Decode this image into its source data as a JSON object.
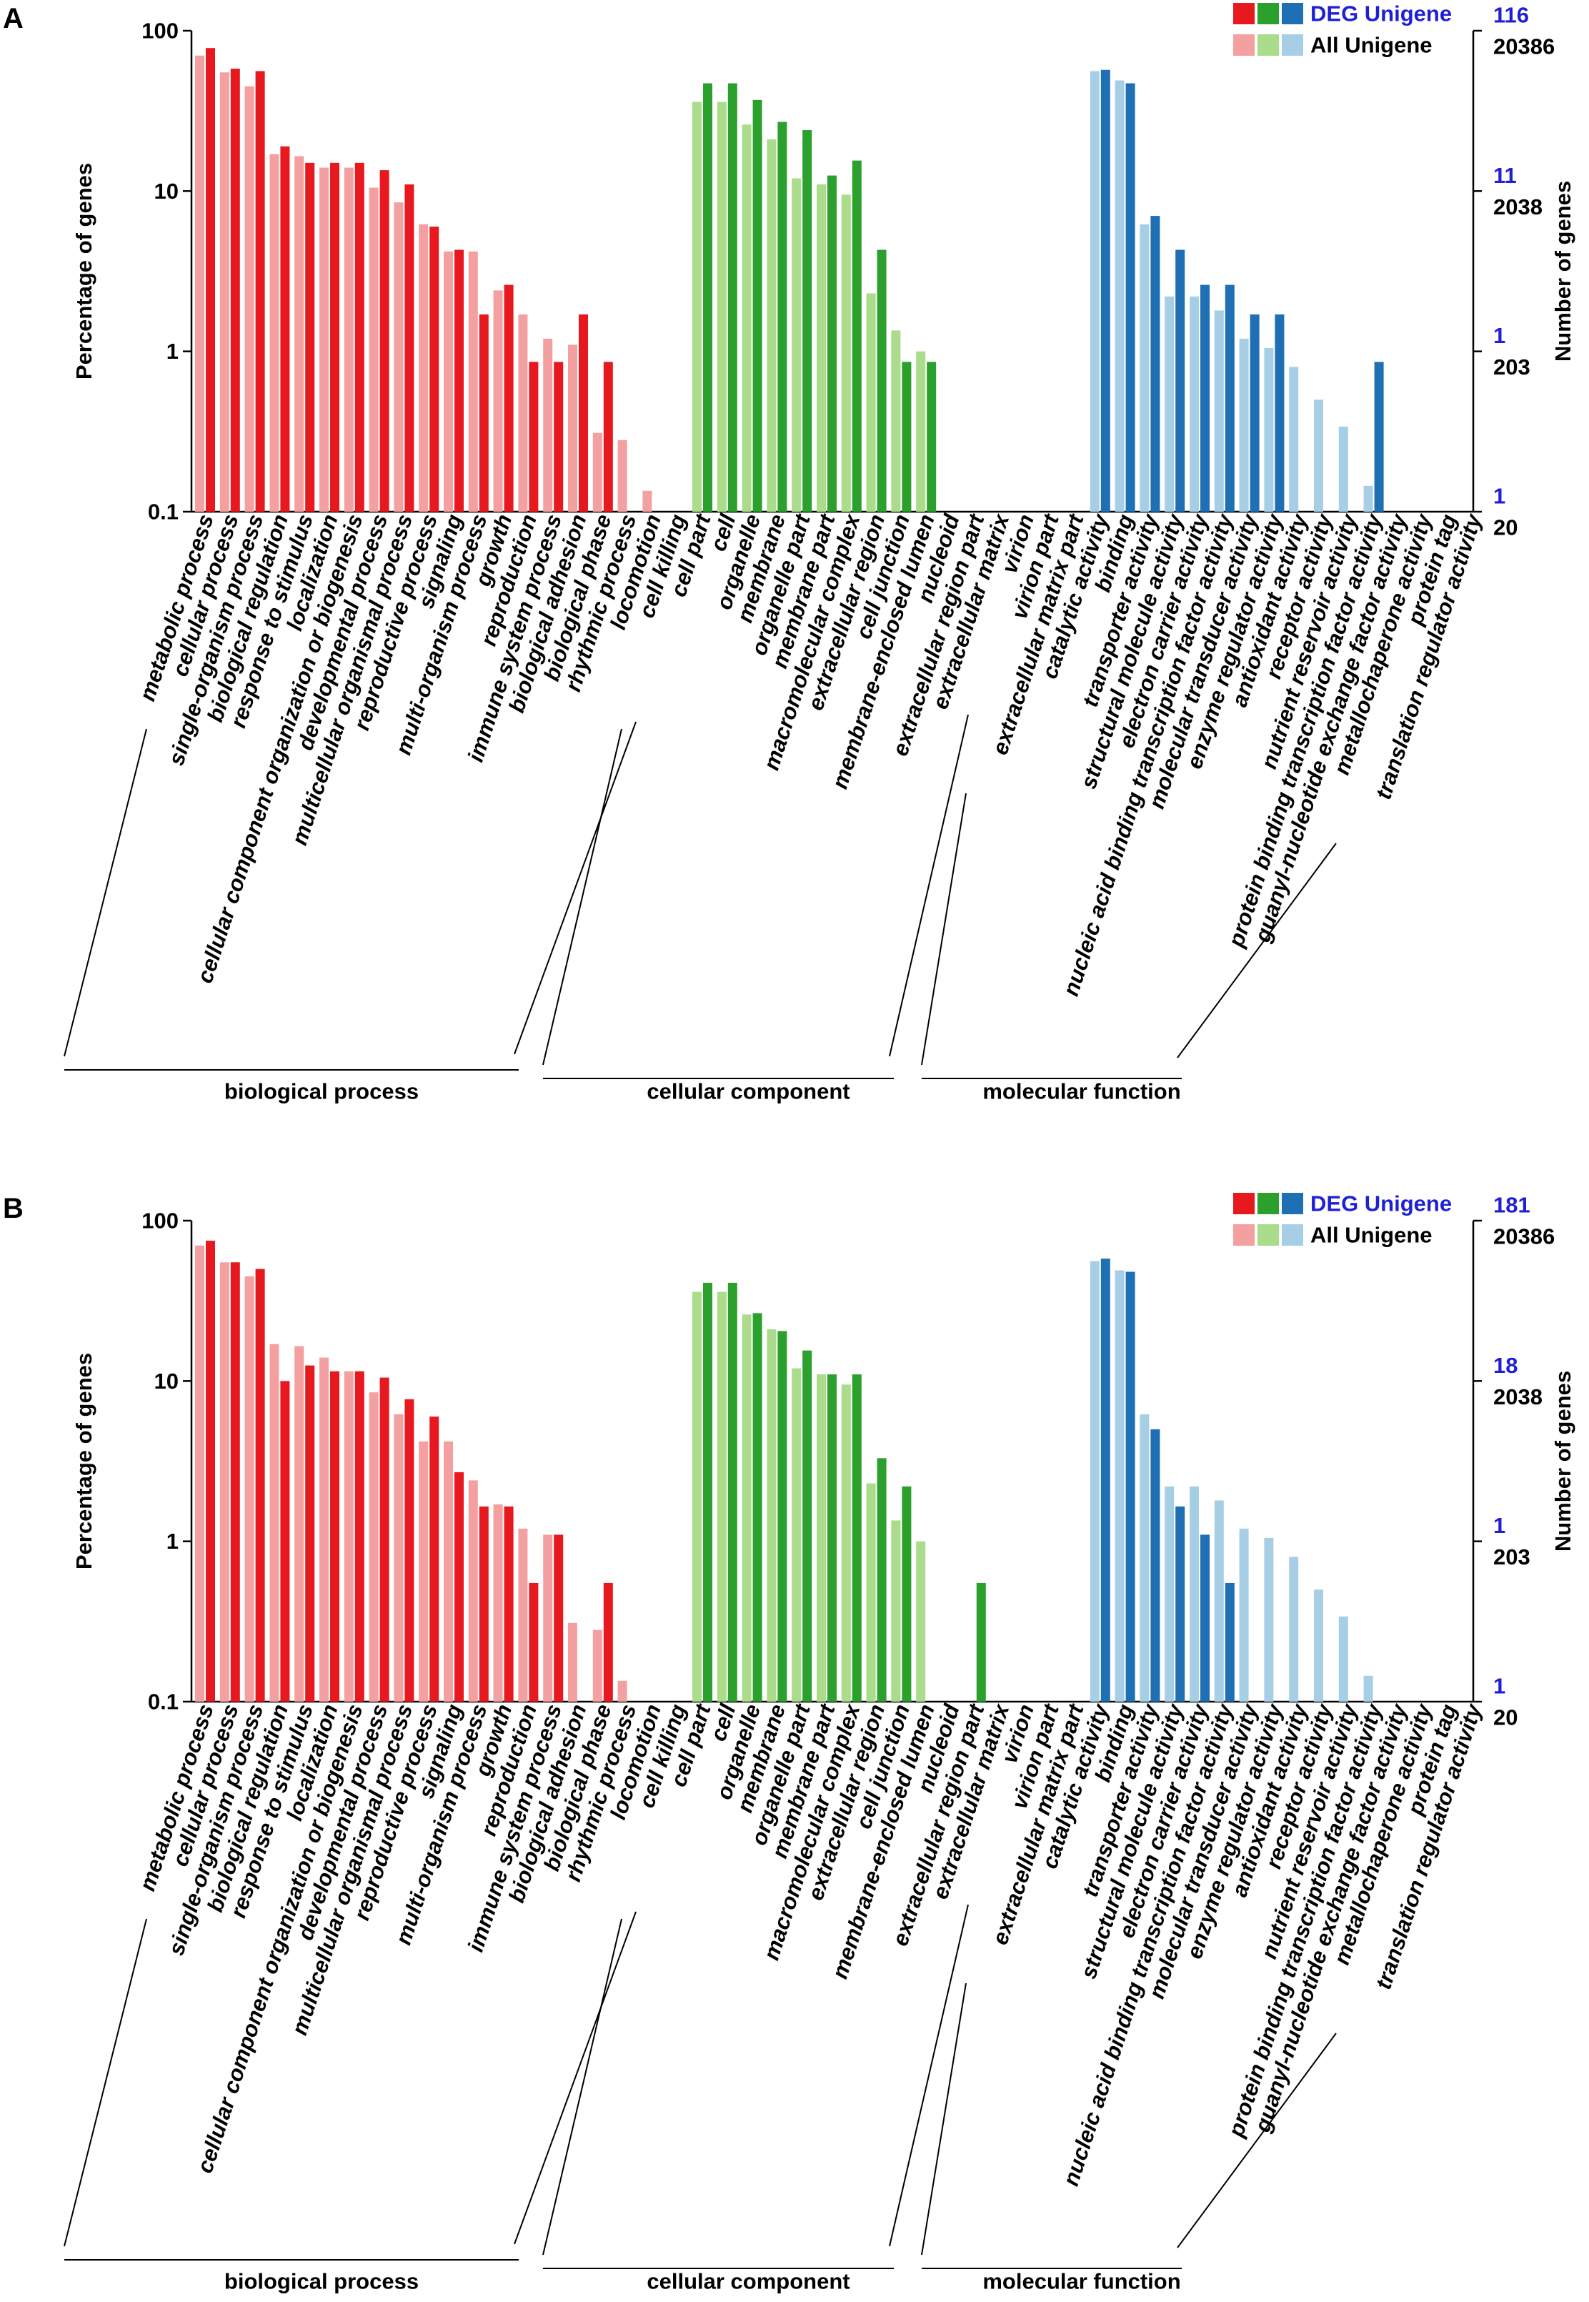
{
  "chart_data": [
    {
      "panel": "A",
      "type": "bar",
      "scale": "log",
      "ylabel": "Percentage of genes",
      "y2label": "Number of genes",
      "ylim": [
        0.1,
        100
      ],
      "y_ticks": [
        "100",
        "10",
        "1",
        "0.1"
      ],
      "right_axis": [
        {
          "deg": "116",
          "all": "20386"
        },
        {
          "deg": "11",
          "all": "2038"
        },
        {
          "deg": "1",
          "all": "203"
        },
        {
          "deg": "1",
          "all": "20"
        }
      ],
      "legend": {
        "deg": "DEG Unigene",
        "all": "All Unigene"
      },
      "groups": [
        {
          "name": "biological process",
          "color_all": "#f4a0a0",
          "color_deg": "#e8191e",
          "categories": [
            "metabolic process",
            "cellular process",
            "single-organism process",
            "biological regulation",
            "response to stimulus",
            "localization",
            "cellular component organization or biogenesis",
            "developmental process",
            "multicellular organismal process",
            "reproductive process",
            "signaling",
            "multi-organism process",
            "growth",
            "reproduction",
            "immune system process",
            "biological adhesion",
            "biological phase",
            "rhythmic process",
            "locomotion",
            "cell killing"
          ],
          "all": [
            70,
            55,
            45,
            17,
            16.5,
            14,
            14,
            10.5,
            8.5,
            6.2,
            4.2,
            4.2,
            2.4,
            1.7,
            1.2,
            1.1,
            0.31,
            0.28,
            0.135,
            null
          ],
          "deg": [
            78,
            58,
            56,
            19,
            15,
            15,
            15,
            13.5,
            11,
            6,
            4.3,
            1.7,
            2.6,
            0.86,
            0.86,
            1.7,
            0.86,
            null,
            null,
            null
          ]
        },
        {
          "name": "cellular component",
          "color_all": "#aadc8c",
          "color_deg": "#2ca02c",
          "categories": [
            "cell part",
            "cell",
            "organelle",
            "membrane",
            "organelle part",
            "membrane part",
            "macromolecular complex",
            "extracellular region",
            "cell junction",
            "membrane-enclosed lumen",
            "nucleoid",
            "extracellular region part",
            "extracellular matrix",
            "virion",
            "virion part",
            "extracellular matrix part"
          ],
          "all": [
            36,
            36,
            26,
            21,
            12,
            11,
            9.5,
            2.3,
            1.35,
            1.0,
            null,
            null,
            null,
            null,
            null,
            null
          ],
          "deg": [
            47,
            47,
            37,
            27,
            24,
            12.5,
            15.5,
            4.3,
            0.86,
            0.86,
            null,
            null,
            null,
            null,
            null,
            null
          ]
        },
        {
          "name": "molecular function",
          "color_all": "#a6cfe6",
          "color_deg": "#1f6fb4",
          "categories": [
            "catalytic activity",
            "binding",
            "transporter activity",
            "structural molecule activity",
            "electron carrier activity",
            "nucleic acid binding transcription factor activity",
            "molecular transducer activity",
            "enzyme regulator activity",
            "antioxidant activity",
            "receptor activity",
            "nutrient reservoir activity",
            "protein binding transcription factor activity",
            "guanyl-nucleotide exchange factor activity",
            "metallochaperone activity",
            "protein tag",
            "translation regulator activity"
          ],
          "all": [
            56,
            49,
            6.2,
            2.2,
            2.2,
            1.8,
            1.2,
            1.05,
            0.8,
            0.5,
            0.34,
            0.145,
            null,
            null,
            null,
            null
          ],
          "deg": [
            57,
            47,
            7,
            4.3,
            2.6,
            2.6,
            1.7,
            1.7,
            null,
            null,
            null,
            0.86,
            null,
            null,
            null,
            null
          ]
        }
      ]
    },
    {
      "panel": "B",
      "type": "bar",
      "scale": "log",
      "ylabel": "Percentage of genes",
      "y2label": "Number of genes",
      "ylim": [
        0.1,
        100
      ],
      "y_ticks": [
        "100",
        "10",
        "1",
        "0.1"
      ],
      "right_axis": [
        {
          "deg": "181",
          "all": "20386"
        },
        {
          "deg": "18",
          "all": "2038"
        },
        {
          "deg": "1",
          "all": "203"
        },
        {
          "deg": "1",
          "all": "20"
        }
      ],
      "legend": {
        "deg": "DEG Unigene",
        "all": "All Unigene"
      },
      "groups": [
        {
          "name": "biological process",
          "color_all": "#f4a0a0",
          "color_deg": "#e8191e",
          "categories": [
            "metabolic process",
            "cellular process",
            "single-organism process",
            "biological regulation",
            "response to stimulus",
            "localization",
            "cellular component organization or biogenesis",
            "developmental process",
            "multicellular organismal process",
            "reproductive process",
            "signaling",
            "multi-organism process",
            "growth",
            "reproduction",
            "immune system process",
            "biological adhesion",
            "biological phase",
            "rhythmic process",
            "locomotion",
            "cell killing"
          ],
          "all": [
            70,
            55,
            45,
            17,
            16.5,
            14,
            11.5,
            8.5,
            6.2,
            4.2,
            4.2,
            2.4,
            1.7,
            1.2,
            1.1,
            0.31,
            0.28,
            0.135,
            null,
            null
          ],
          "deg": [
            75,
            55,
            50,
            10,
            12.5,
            11.5,
            11.5,
            10.5,
            7.7,
            6,
            2.7,
            1.65,
            1.65,
            0.55,
            1.1,
            null,
            0.55,
            null,
            null,
            null
          ]
        },
        {
          "name": "cellular component",
          "color_all": "#aadc8c",
          "color_deg": "#2ca02c",
          "categories": [
            "cell part",
            "cell",
            "organelle",
            "membrane",
            "organelle part",
            "membrane part",
            "macromolecular complex",
            "extracellular region",
            "cell junction",
            "membrane-enclosed lumen",
            "nucleoid",
            "extracellular region part",
            "extracellular matrix",
            "virion",
            "virion part",
            "extracellular matrix part"
          ],
          "all": [
            36,
            36,
            26,
            21,
            12,
            11,
            9.5,
            2.3,
            1.35,
            1.0,
            null,
            null,
            null,
            null,
            null,
            null
          ],
          "deg": [
            41,
            41,
            26.5,
            20.5,
            15.5,
            11,
            11,
            3.3,
            2.2,
            null,
            null,
            0.55,
            null,
            null,
            null,
            null
          ]
        },
        {
          "name": "molecular function",
          "color_all": "#a6cfe6",
          "color_deg": "#1f6fb4",
          "categories": [
            "catalytic activity",
            "binding",
            "transporter activity",
            "structural molecule activity",
            "electron carrier activity",
            "nucleic acid binding transcription factor activity",
            "molecular transducer activity",
            "enzyme regulator activity",
            "antioxidant activity",
            "receptor activity",
            "nutrient reservoir activity",
            "protein binding transcription factor activity",
            "guanyl-nucleotide exchange factor activity",
            "metallochaperone activity",
            "protein tag",
            "translation regulator activity"
          ],
          "all": [
            56,
            49,
            6.2,
            2.2,
            2.2,
            1.8,
            1.2,
            1.05,
            0.8,
            0.5,
            0.34,
            0.145,
            null,
            null,
            null,
            null
          ],
          "deg": [
            58,
            48,
            5,
            1.65,
            1.1,
            0.55,
            null,
            null,
            null,
            null,
            null,
            null,
            null,
            null,
            null,
            null
          ]
        }
      ]
    }
  ]
}
